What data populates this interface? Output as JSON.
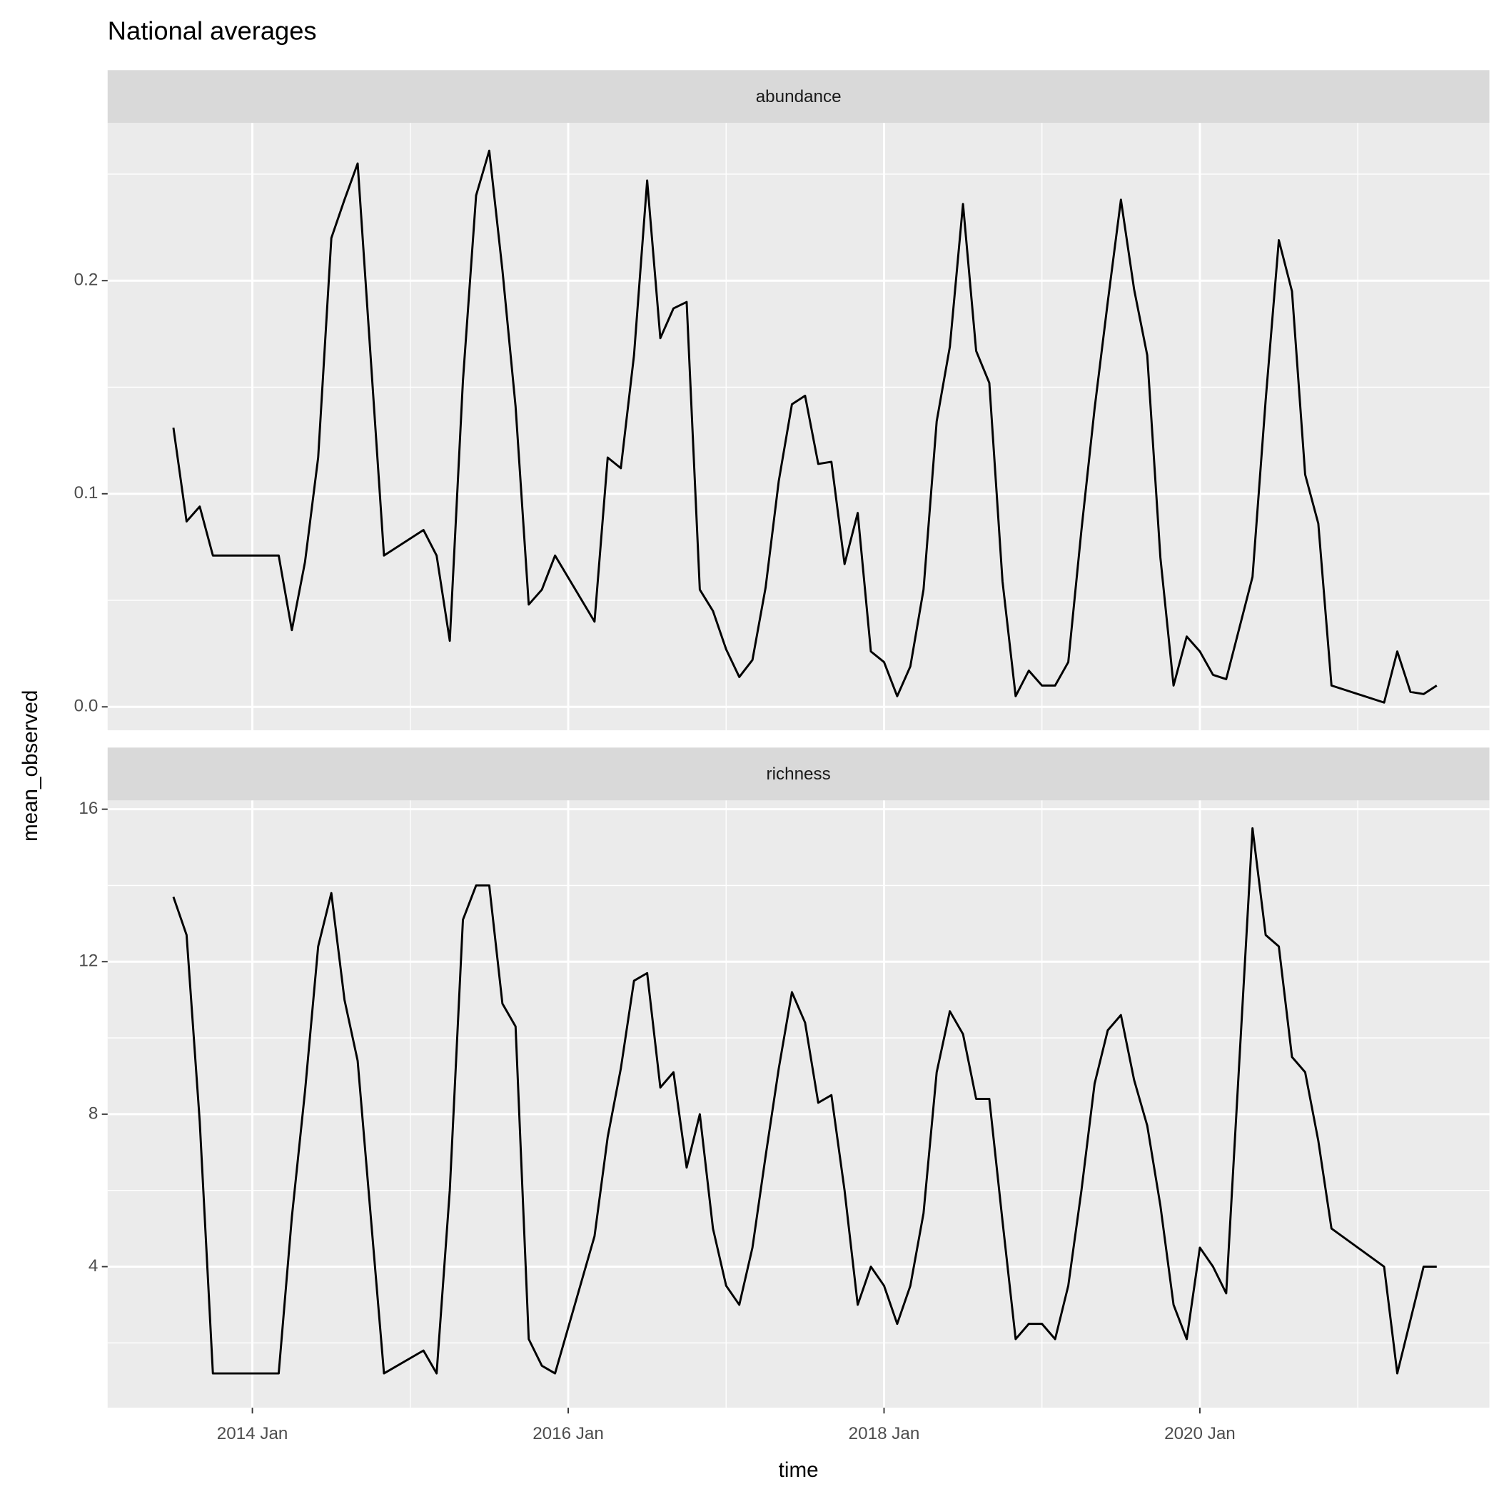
{
  "chart_data": {
    "type": "line",
    "title": "National averages",
    "x_label": "time",
    "y_label": "mean_observed",
    "color": "#000000",
    "grid": true,
    "x": [
      "2013-07",
      "2013-08",
      "2013-09",
      "2013-10",
      "2014-03",
      "2014-04",
      "2014-05",
      "2014-06",
      "2014-07",
      "2014-08",
      "2014-09",
      "2014-11",
      "2015-02",
      "2015-03",
      "2015-04",
      "2015-05",
      "2015-06",
      "2015-07",
      "2015-08",
      "2015-09",
      "2015-10",
      "2015-11",
      "2015-12",
      "2016-03",
      "2016-04",
      "2016-05",
      "2016-06",
      "2016-07",
      "2016-08",
      "2016-09",
      "2016-10",
      "2016-11",
      "2016-12",
      "2017-01",
      "2017-02",
      "2017-03",
      "2017-04",
      "2017-05",
      "2017-06",
      "2017-07",
      "2017-08",
      "2017-09",
      "2017-10",
      "2017-11",
      "2017-12",
      "2018-01",
      "2018-02",
      "2018-03",
      "2018-04",
      "2018-05",
      "2018-06",
      "2018-07",
      "2018-08",
      "2018-09",
      "2018-10",
      "2018-11",
      "2018-12",
      "2019-01",
      "2019-02",
      "2019-03",
      "2019-04",
      "2019-05",
      "2019-06",
      "2019-07",
      "2019-08",
      "2019-09",
      "2019-10",
      "2019-11",
      "2019-12",
      "2020-01",
      "2020-02",
      "2020-03",
      "2020-05",
      "2020-06",
      "2020-07",
      "2020-08",
      "2020-09",
      "2020-10",
      "2020-11",
      "2021-03",
      "2021-04",
      "2021-05",
      "2021-06",
      "2021-07"
    ],
    "xlim": [
      "2013-02",
      "2021-11"
    ],
    "xticks": [
      {
        "value": "2014-01",
        "label": "2014 Jan"
      },
      {
        "value": "2016-01",
        "label": "2016 Jan"
      },
      {
        "value": "2018-01",
        "label": "2018 Jan"
      },
      {
        "value": "2020-01",
        "label": "2020 Jan"
      }
    ],
    "panels": [
      {
        "title": "abundance",
        "ylim": [
          -0.011,
          0.274
        ],
        "yticks": [
          {
            "value": 0,
            "label": "0.0"
          },
          0.1,
          0.2
        ],
        "values": [
          0.131,
          0.087,
          0.094,
          0.071,
          0.071,
          0.036,
          0.068,
          0.117,
          0.22,
          0.238,
          0.255,
          0.071,
          0.083,
          0.071,
          0.031,
          0.153,
          0.24,
          0.261,
          0.205,
          0.141,
          0.048,
          0.055,
          0.071,
          0.04,
          0.117,
          0.112,
          0.165,
          0.247,
          0.173,
          0.187,
          0.19,
          0.055,
          0.045,
          0.027,
          0.014,
          0.022,
          0.056,
          0.106,
          0.142,
          0.146,
          0.114,
          0.115,
          0.067,
          0.091,
          0.026,
          0.021,
          0.005,
          0.019,
          0.055,
          0.134,
          0.169,
          0.236,
          0.167,
          0.152,
          0.059,
          0.005,
          0.017,
          0.01,
          0.01,
          0.021,
          0.083,
          0.14,
          0.19,
          0.238,
          0.196,
          0.165,
          0.07,
          0.01,
          0.033,
          0.026,
          0.015,
          0.013,
          0.061,
          0.144,
          0.219,
          0.195,
          0.109,
          0.086,
          0.01,
          0.002,
          0.026,
          0.007,
          0.006,
          0.01
        ]
      },
      {
        "title": "richness",
        "ylim": [
          0.3,
          16.23
        ],
        "yticks": [
          4,
          8,
          12,
          16
        ],
        "values": [
          13.7,
          12.7,
          7.8,
          1.2,
          1.2,
          5.3,
          8.6,
          12.4,
          13.8,
          11.0,
          9.4,
          1.2,
          1.8,
          1.2,
          6.0,
          13.1,
          14.0,
          14.0,
          10.9,
          10.3,
          2.1,
          1.4,
          1.2,
          4.8,
          7.4,
          9.2,
          11.5,
          11.7,
          8.7,
          9.1,
          6.6,
          8.0,
          5.0,
          3.5,
          3.0,
          4.5,
          6.9,
          9.2,
          11.2,
          10.4,
          8.3,
          8.5,
          6.0,
          3.0,
          4.0,
          3.5,
          2.5,
          3.5,
          5.4,
          9.1,
          10.7,
          10.1,
          8.4,
          8.4,
          5.2,
          2.1,
          2.5,
          2.5,
          2.1,
          3.5,
          6.0,
          8.8,
          10.2,
          10.6,
          8.9,
          7.7,
          5.6,
          3.0,
          2.1,
          4.5,
          4.0,
          3.3,
          15.5,
          12.7,
          12.4,
          9.5,
          9.1,
          7.3,
          5.0,
          4.0,
          1.2,
          2.6,
          4.0,
          4.0
        ]
      }
    ]
  }
}
